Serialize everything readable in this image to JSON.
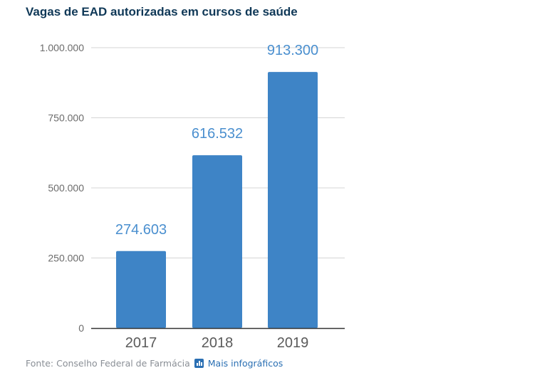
{
  "title": "Vagas de EAD autorizadas em cursos de saúde",
  "chart_data": {
    "type": "bar",
    "title": "Vagas de EAD autorizadas em cursos de saúde",
    "categories": [
      "2017",
      "2018",
      "2019"
    ],
    "values": [
      274603,
      616532,
      913300
    ],
    "data_labels": [
      "274.603",
      "616.532",
      "913.300"
    ],
    "ylim": [
      0,
      1000000
    ],
    "y_ticks": [
      0,
      250000,
      500000,
      750000,
      1000000
    ],
    "y_tick_labels": [
      "0",
      "250.000",
      "500.000",
      "750.000",
      "1.000.000"
    ],
    "xlabel": "",
    "ylabel": "",
    "grid": true,
    "bar_color": "#3e84c6",
    "label_color": "#4a8fcf"
  },
  "footer": {
    "source": "Fonte: Conselho Federal de Farmácia",
    "more_link": "Mais infográficos",
    "more_icon": "bar-chart-icon"
  }
}
